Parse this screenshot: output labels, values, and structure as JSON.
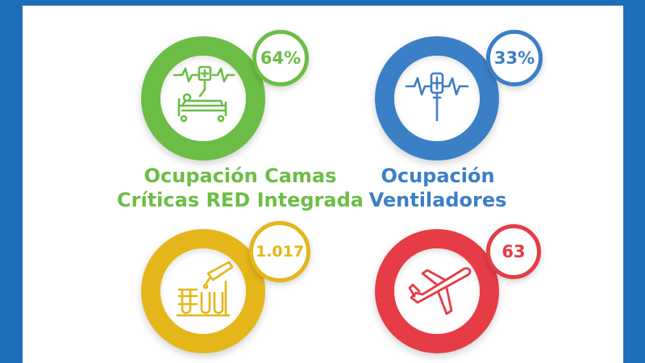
{
  "colors": {
    "frame": "#1f6fb8",
    "green": "#6cbd45",
    "blue": "#3b7fc6",
    "yellow": "#e4b61a",
    "red": "#e63c45"
  },
  "tiles": [
    {
      "value": "64%",
      "caption_line1": "Ocupación Camas",
      "caption_line2": "Críticas RED Integrada",
      "icon": "hospital-bed-icon"
    },
    {
      "value": "33%",
      "caption_line1": "Ocupación",
      "caption_line2": "Ventiladores",
      "icon": "ventilator-icon"
    },
    {
      "value": "1.017",
      "icon": "test-tubes-icon"
    },
    {
      "value": "63",
      "icon": "airplane-icon"
    }
  ]
}
